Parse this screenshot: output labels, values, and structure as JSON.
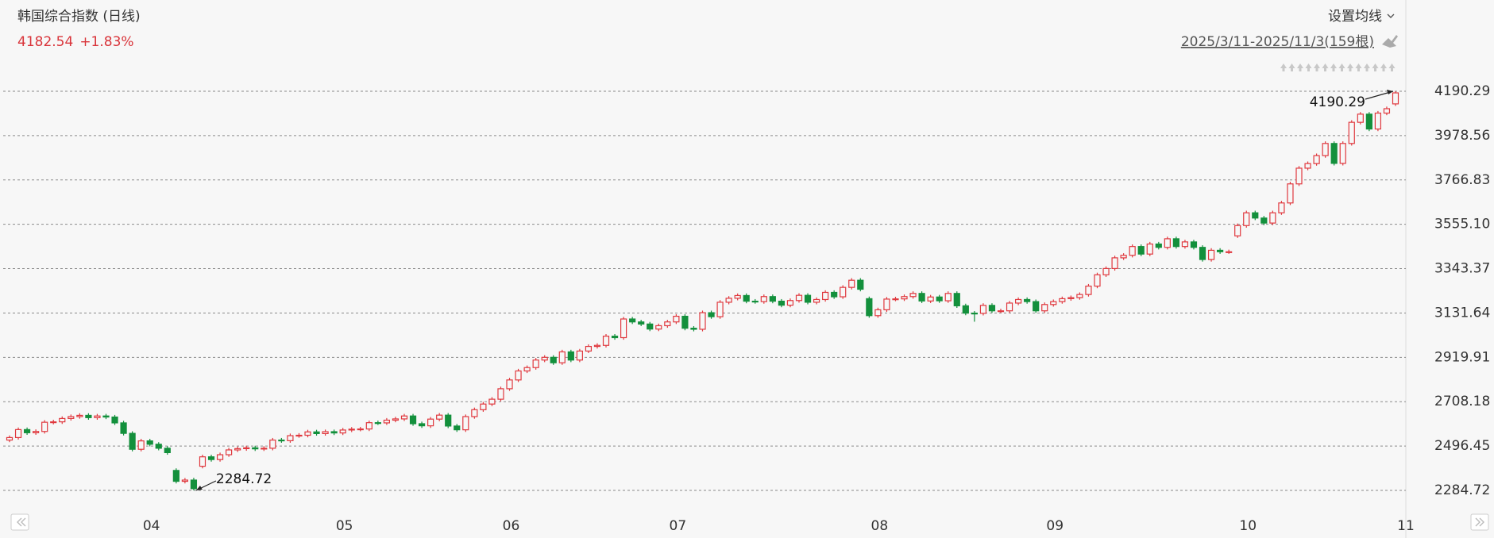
{
  "chart_data": {
    "type": "candlestick",
    "title": "韩国综合指数 (日线)",
    "price": 4182.54,
    "change": "+1.83%",
    "ma_setting": "设置均线",
    "range_label": "2025/3/11-2025/11/3(159根)",
    "colors": {
      "up": "#e0383e",
      "down": "#13903c"
    },
    "grid": true,
    "ylim": [
      2201.4,
      4307.7
    ],
    "yticks": [
      2284.72,
      2496.45,
      2708.18,
      2919.91,
      3131.64,
      3343.37,
      {
        "value": 3555.1,
        "label": "3555.10"
      },
      3766.83,
      3978.56,
      4190.29
    ],
    "categories": [
      null,
      null,
      null,
      null,
      null,
      null,
      null,
      null,
      null,
      null,
      null,
      null,
      null,
      null,
      null,
      "04",
      null,
      null,
      null,
      null,
      null,
      null,
      null,
      null,
      null,
      null,
      null,
      null,
      null,
      null,
      null,
      null,
      null,
      null,
      null,
      null,
      null,
      "05",
      null,
      null,
      null,
      null,
      null,
      null,
      null,
      null,
      null,
      null,
      null,
      null,
      null,
      null,
      null,
      null,
      null,
      null,
      "06",
      null,
      null,
      null,
      null,
      null,
      null,
      null,
      null,
      null,
      null,
      null,
      null,
      null,
      null,
      null,
      null,
      null,
      null,
      "07",
      null,
      null,
      null,
      null,
      null,
      null,
      null,
      null,
      null,
      null,
      null,
      null,
      null,
      null,
      null,
      null,
      null,
      null,
      null,
      null,
      null,
      null,
      "08",
      null,
      null,
      null,
      null,
      null,
      null,
      null,
      null,
      null,
      null,
      null,
      null,
      null,
      null,
      null,
      null,
      null,
      null,
      null,
      "09",
      null,
      null,
      null,
      null,
      null,
      null,
      null,
      null,
      null,
      null,
      null,
      null,
      null,
      null,
      null,
      null,
      null,
      null,
      null,
      null,
      null,
      "10",
      null,
      null,
      null,
      null,
      null,
      null,
      null,
      null,
      null,
      null,
      null,
      null,
      null,
      null,
      null,
      null,
      null,
      "11"
    ],
    "open": [
      2525,
      2537,
      2575,
      2560,
      2566,
      2610,
      2612,
      2628,
      2637,
      2643,
      2632,
      2640,
      2635,
      2607,
      2557,
      2481,
      2521,
      2505,
      2486,
      2380,
      2328,
      2334,
      2400,
      2445,
      2432,
      2455,
      2478,
      2484,
      2488,
      2483,
      2486,
      2525,
      2522,
      2546,
      2548,
      2564,
      2556,
      2565,
      2559,
      2573,
      2577,
      2578,
      2608,
      2607,
      2620,
      2626,
      2640,
      2603,
      2593,
      2625,
      2644,
      2592,
      2574,
      2637,
      2670,
      2697,
      2720,
      2770,
      2812,
      2855,
      2871,
      2907,
      2920,
      2894,
      2946,
      2907,
      2950,
      2972,
      2977,
      3021,
      3014,
      3103,
      3089,
      3079,
      3055,
      3071,
      3089,
      3116,
      3059,
      3054,
      3133,
      3114,
      3183,
      3202,
      3215,
      3188,
      3186,
      3210,
      3188,
      3169,
      3191,
      3216,
      3183,
      3196,
      3230,
      3209,
      3254,
      3288,
      3200,
      3119,
      3147,
      3198,
      3199,
      3210,
      3225,
      3189,
      3208,
      3190,
      3225,
      3166,
      3131,
      3130,
      3168,
      3142,
      3142,
      3179,
      3196,
      3186,
      3142,
      3172,
      3186,
      3200,
      3205,
      3220,
      3260,
      3314,
      3344,
      3395,
      3407,
      3449,
      3413,
      3461,
      3445,
      3486,
      3449,
      3471,
      3445,
      3387,
      3431,
      3424,
      3500,
      3549,
      3610,
      3585,
      3561,
      3610,
      3657,
      3748,
      3823,
      3845,
      3883,
      3941,
      3846,
      3941,
      4042,
      4081,
      4010,
      4086,
      4130
    ],
    "high": [
      2547,
      2585,
      2585,
      2576,
      2620,
      2622,
      2638,
      2647,
      2653,
      2653,
      2650,
      2650,
      2645,
      2617,
      2567,
      2531,
      2531,
      2515,
      2496,
      2390,
      2344,
      2345,
      2455,
      2455,
      2465,
      2488,
      2494,
      2498,
      2498,
      2496,
      2535,
      2535,
      2556,
      2558,
      2574,
      2574,
      2575,
      2575,
      2583,
      2587,
      2588,
      2618,
      2618,
      2630,
      2636,
      2650,
      2650,
      2613,
      2635,
      2654,
      2654,
      2602,
      2647,
      2680,
      2707,
      2730,
      2780,
      2822,
      2865,
      2881,
      2917,
      2930,
      2930,
      2956,
      2956,
      2960,
      2982,
      2987,
      3031,
      3031,
      3113,
      3113,
      3099,
      3089,
      3081,
      3099,
      3126,
      3126,
      3069,
      3143,
      3143,
      3193,
      3212,
      3225,
      3225,
      3198,
      3220,
      3220,
      3198,
      3201,
      3226,
      3226,
      3206,
      3240,
      3240,
      3264,
      3298,
      3298,
      3210,
      3157,
      3208,
      3209,
      3220,
      3235,
      3235,
      3218,
      3218,
      3235,
      3235,
      3176,
      3141,
      3178,
      3178,
      3152,
      3189,
      3206,
      3206,
      3196,
      3182,
      3196,
      3210,
      3215,
      3230,
      3270,
      3324,
      3354,
      3405,
      3417,
      3459,
      3459,
      3471,
      3471,
      3496,
      3496,
      3481,
      3481,
      3455,
      3441,
      3441,
      3434,
      3559,
      3620,
      3620,
      3595,
      3620,
      3667,
      3758,
      3833,
      3855,
      3893,
      3951,
      3951,
      3951,
      4052,
      4091,
      4091,
      4096,
      4117,
      4190.29
    ],
    "low": [
      2515,
      2527,
      2550,
      2550,
      2556,
      2600,
      2602,
      2618,
      2627,
      2622,
      2622,
      2625,
      2597,
      2547,
      2471,
      2471,
      2495,
      2476,
      2455,
      2318,
      2318,
      2284.72,
      2390,
      2422,
      2422,
      2445,
      2468,
      2474,
      2473,
      2473,
      2476,
      2512,
      2512,
      2536,
      2538,
      2546,
      2546,
      2549,
      2549,
      2563,
      2567,
      2568,
      2597,
      2597,
      2610,
      2616,
      2593,
      2583,
      2583,
      2615,
      2582,
      2564,
      2564,
      2627,
      2660,
      2687,
      2710,
      2760,
      2802,
      2845,
      2861,
      2897,
      2884,
      2884,
      2897,
      2897,
      2940,
      2962,
      2967,
      3004,
      3004,
      3079,
      3069,
      3045,
      3045,
      3061,
      3079,
      3049,
      3044,
      3044,
      3104,
      3104,
      3173,
      3192,
      3178,
      3176,
      3176,
      3178,
      3159,
      3159,
      3181,
      3173,
      3173,
      3186,
      3199,
      3199,
      3244,
      3235,
      3109,
      3109,
      3137,
      3188,
      3189,
      3200,
      3179,
      3179,
      3180,
      3180,
      3156,
      3121,
      3090,
      3120,
      3132,
      3132,
      3132,
      3169,
      3176,
      3132,
      3132,
      3162,
      3176,
      3190,
      3195,
      3210,
      3250,
      3304,
      3334,
      3385,
      3397,
      3403,
      3403,
      3435,
      3435,
      3439,
      3439,
      3435,
      3377,
      3377,
      3414,
      3414,
      3490,
      3539,
      3575,
      3551,
      3551,
      3600,
      3647,
      3738,
      3813,
      3835,
      3873,
      3836,
      3836,
      3931,
      4032,
      4000,
      4000,
      4076,
      4120
    ],
    "close": [
      2537,
      2575,
      2560,
      2566,
      2610,
      2612,
      2628,
      2637,
      2643,
      2632,
      2640,
      2635,
      2607,
      2557,
      2481,
      2521,
      2505,
      2486,
      2465,
      2328,
      2334,
      2293,
      2445,
      2432,
      2455,
      2478,
      2484,
      2488,
      2483,
      2486,
      2525,
      2522,
      2546,
      2548,
      2564,
      2556,
      2565,
      2559,
      2573,
      2577,
      2578,
      2608,
      2607,
      2620,
      2626,
      2640,
      2603,
      2593,
      2625,
      2644,
      2592,
      2574,
      2637,
      2670,
      2697,
      2720,
      2770,
      2812,
      2855,
      2871,
      2907,
      2920,
      2894,
      2946,
      2907,
      2950,
      2972,
      2977,
      3021,
      3014,
      3103,
      3089,
      3079,
      3055,
      3071,
      3089,
      3116,
      3059,
      3054,
      3133,
      3114,
      3183,
      3202,
      3215,
      3188,
      3186,
      3210,
      3188,
      3169,
      3191,
      3216,
      3183,
      3196,
      3230,
      3209,
      3254,
      3288,
      3245,
      3119,
      3147,
      3198,
      3199,
      3210,
      3225,
      3189,
      3208,
      3190,
      3225,
      3166,
      3131,
      3130,
      3168,
      3142,
      3142,
      3179,
      3196,
      3186,
      3142,
      3172,
      3186,
      3200,
      3205,
      3220,
      3260,
      3314,
      3344,
      3395,
      3407,
      3449,
      3413,
      3461,
      3445,
      3486,
      3449,
      3471,
      3445,
      3387,
      3431,
      3424,
      3424,
      3549,
      3610,
      3585,
      3561,
      3610,
      3657,
      3748,
      3823,
      3845,
      3883,
      3941,
      3846,
      3941,
      4042,
      4081,
      4010,
      4086,
      4107,
      4182.54
    ]
  }
}
